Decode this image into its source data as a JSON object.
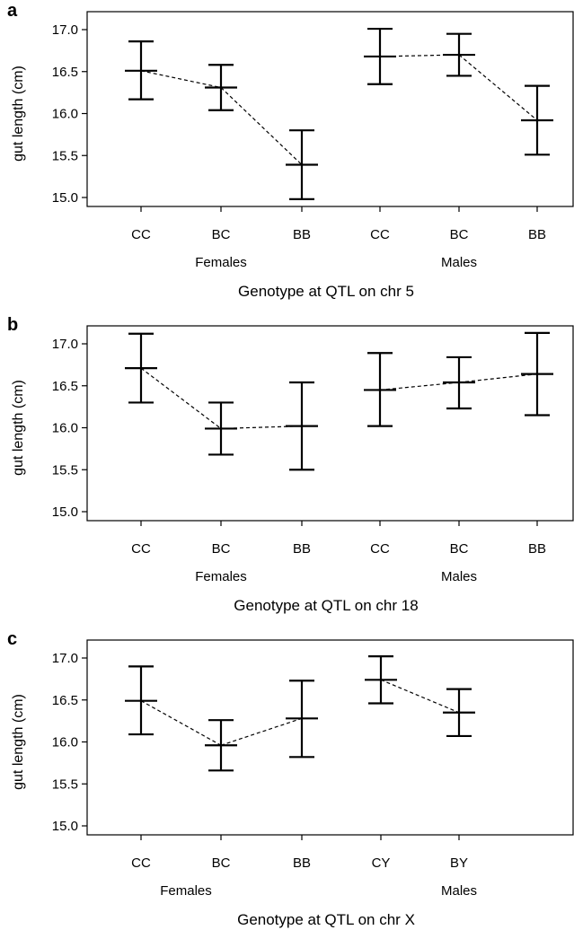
{
  "chart_data": [
    {
      "type": "errorbar",
      "panel": "a",
      "ylabel": "gut length (cm)",
      "xlabel": "Genotype at QTL on chr 5",
      "ylim": [
        14.9,
        17.2
      ],
      "yticks": [
        "15.0",
        "15.5",
        "16.0",
        "16.5",
        "17.0"
      ],
      "groups": [
        {
          "label": "Females",
          "points": [
            {
              "category": "CC",
              "mean": 16.51,
              "lower": 16.17,
              "upper": 16.86
            },
            {
              "category": "BC",
              "mean": 16.31,
              "lower": 16.04,
              "upper": 16.58
            },
            {
              "category": "BB",
              "mean": 15.39,
              "lower": 14.98,
              "upper": 15.8
            }
          ]
        },
        {
          "label": "Males",
          "points": [
            {
              "category": "CC",
              "mean": 16.68,
              "lower": 16.35,
              "upper": 17.01
            },
            {
              "category": "BC",
              "mean": 16.7,
              "lower": 16.45,
              "upper": 16.95
            },
            {
              "category": "BB",
              "mean": 15.92,
              "lower": 15.51,
              "upper": 16.33
            }
          ]
        }
      ]
    },
    {
      "type": "errorbar",
      "panel": "b",
      "ylabel": "gut length (cm)",
      "xlabel": "Genotype at QTL on chr 18",
      "ylim": [
        14.9,
        17.2
      ],
      "yticks": [
        "15.0",
        "15.5",
        "16.0",
        "16.5",
        "17.0"
      ],
      "groups": [
        {
          "label": "Females",
          "points": [
            {
              "category": "CC",
              "mean": 16.71,
              "lower": 16.3,
              "upper": 17.12
            },
            {
              "category": "BC",
              "mean": 15.99,
              "lower": 15.68,
              "upper": 16.3
            },
            {
              "category": "BB",
              "mean": 16.02,
              "lower": 15.5,
              "upper": 16.54
            }
          ]
        },
        {
          "label": "Males",
          "points": [
            {
              "category": "CC",
              "mean": 16.45,
              "lower": 16.02,
              "upper": 16.89
            },
            {
              "category": "BC",
              "mean": 16.54,
              "lower": 16.23,
              "upper": 16.84
            },
            {
              "category": "BB",
              "mean": 16.64,
              "lower": 16.15,
              "upper": 17.13
            }
          ]
        }
      ]
    },
    {
      "type": "errorbar",
      "panel": "c",
      "ylabel": "gut length (cm)",
      "xlabel": "Genotype at QTL on chr X",
      "ylim": [
        14.9,
        17.2
      ],
      "yticks": [
        "15.0",
        "15.5",
        "16.0",
        "16.5",
        "17.0"
      ],
      "groups": [
        {
          "label": "Females",
          "points": [
            {
              "category": "CC",
              "mean": 16.49,
              "lower": 16.09,
              "upper": 16.9
            },
            {
              "category": "BC",
              "mean": 15.96,
              "lower": 15.66,
              "upper": 16.26
            },
            {
              "category": "BB",
              "mean": 16.28,
              "lower": 15.82,
              "upper": 16.73
            }
          ]
        },
        {
          "label": "Males",
          "points": [
            {
              "category": "CY",
              "mean": 16.74,
              "lower": 16.46,
              "upper": 17.02
            },
            {
              "category": "BY",
              "mean": 16.35,
              "lower": 16.07,
              "upper": 16.63
            }
          ]
        }
      ]
    }
  ]
}
